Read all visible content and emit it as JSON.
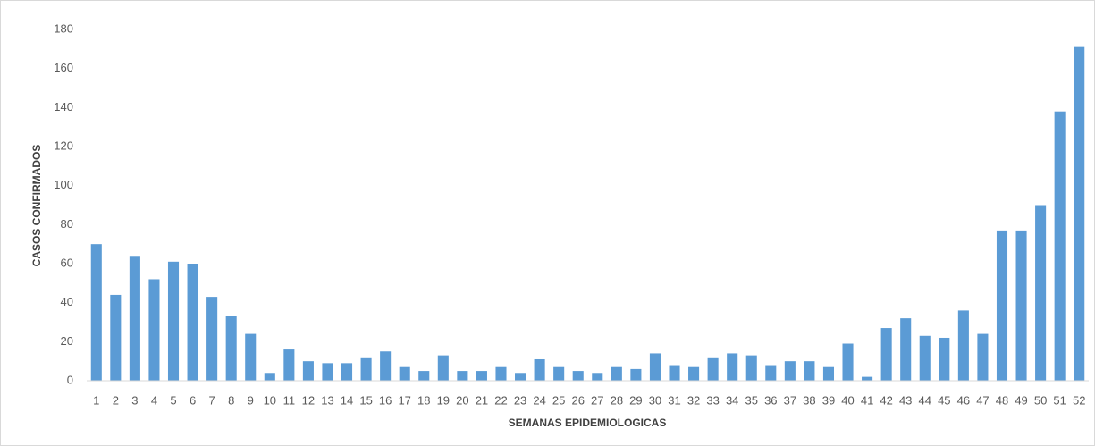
{
  "chart_data": {
    "type": "bar",
    "x_label": "SEMANAS EPIDEMIOLOGICAS",
    "y_label": "CASOS CONFIRMADOS",
    "categories": [
      "1",
      "2",
      "3",
      "4",
      "5",
      "6",
      "7",
      "8",
      "9",
      "10",
      "11",
      "12",
      "13",
      "14",
      "15",
      "16",
      "17",
      "18",
      "19",
      "20",
      "21",
      "22",
      "23",
      "24",
      "25",
      "26",
      "27",
      "28",
      "29",
      "30",
      "31",
      "32",
      "33",
      "34",
      "35",
      "36",
      "37",
      "38",
      "39",
      "40",
      "41",
      "42",
      "43",
      "44",
      "45",
      "46",
      "47",
      "48",
      "49",
      "50",
      "51",
      "52"
    ],
    "values": [
      70,
      44,
      64,
      52,
      61,
      60,
      43,
      33,
      24,
      4,
      16,
      10,
      9,
      9,
      12,
      15,
      7,
      5,
      13,
      5,
      5,
      7,
      4,
      11,
      7,
      5,
      4,
      7,
      6,
      14,
      8,
      7,
      12,
      14,
      13,
      8,
      10,
      10,
      7,
      19,
      2,
      27,
      32,
      23,
      22,
      36,
      24,
      77,
      77,
      90,
      138,
      171
    ],
    "color": "#5b9bd5",
    "ylim": [
      0,
      180
    ],
    "yticks": [
      0,
      20,
      40,
      60,
      80,
      100,
      120,
      140,
      160,
      180
    ],
    "grid": false
  }
}
